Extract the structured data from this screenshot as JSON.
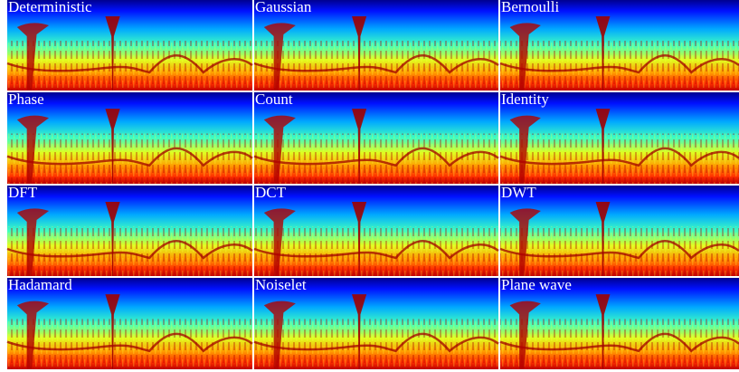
{
  "panels": [
    {
      "label": "Deterministic"
    },
    {
      "label": "Gaussian"
    },
    {
      "label": "Bernoulli"
    },
    {
      "label": "Phase"
    },
    {
      "label": "Count"
    },
    {
      "label": "Identity"
    },
    {
      "label": "DFT"
    },
    {
      "label": "DCT"
    },
    {
      "label": "DWT"
    },
    {
      "label": "Hadamard"
    },
    {
      "label": "Noiselet"
    },
    {
      "label": "Plane wave"
    }
  ]
}
